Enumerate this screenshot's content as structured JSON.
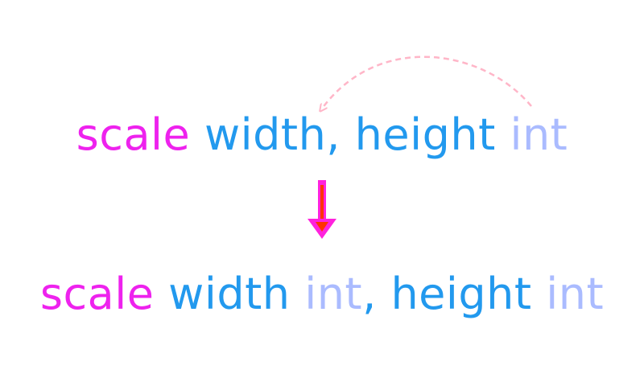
{
  "top_line": {
    "keyword": "scale",
    "param1": "width",
    "comma": ",",
    "param2": "height",
    "type": "int"
  },
  "bottom_line": {
    "keyword": "scale",
    "param1": "width",
    "type1": "int",
    "comma": ",",
    "param2": "height",
    "type2": "int"
  },
  "colors": {
    "keyword": "#ee22ee",
    "identifier": "#2299ee",
    "type": "#aabbff",
    "curved_arrow": "#ffb6c8",
    "down_arrow": "#ff22dd",
    "down_arrow_core": "#ff3300"
  },
  "icons": {
    "curved_arrow": "dashed-curved-arrow-icon",
    "down_arrow": "down-arrow-icon"
  }
}
